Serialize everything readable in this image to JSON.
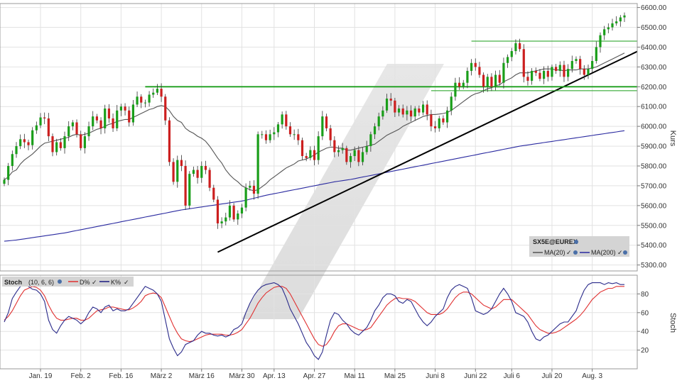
{
  "chart_data": [
    {
      "type": "candlestick",
      "ylabel": "Kurs",
      "ylim": [
        5270,
        6620
      ],
      "y_ticks": [
        5300,
        5400,
        5500,
        5600,
        5700,
        5800,
        5900,
        6000,
        6100,
        6200,
        6300,
        6400,
        6500,
        6600
      ],
      "y_tick_labels": [
        "5300.00",
        "5400.00",
        "5500.00",
        "5600.00",
        "5700.00",
        "5800.00",
        "5900.00",
        "6000.00",
        "6100.00",
        "6200.00",
        "6300.00",
        "6400.00",
        "6500.00",
        "6600.00"
      ],
      "x_tick_labels": [
        "Jan. 19",
        "Feb. 2",
        "Feb. 16",
        "März 2",
        "März 16",
        "März 30",
        "Apr. 13",
        "Apr. 27",
        "Mai 11",
        "Mai 25",
        "Juni 8",
        "Juni 22",
        "Juli 6",
        "Juli 20",
        "Aug. 3"
      ],
      "x_tick_bar_index": [
        9,
        19,
        29,
        39,
        49,
        59,
        67,
        77,
        87,
        97,
        107,
        117,
        126,
        136,
        146
      ],
      "bullish_color": "#1a9e1a",
      "bearish_color": "#cc1f1f",
      "closes": [
        5730,
        5800,
        5860,
        5900,
        5935,
        5920,
        5905,
        5980,
        6005,
        6045,
        6040,
        5950,
        5870,
        5920,
        5890,
        5950,
        6000,
        6020,
        5960,
        5890,
        5950,
        6000,
        6050,
        6030,
        5990,
        6090,
        6040,
        5990,
        6080,
        6100,
        6080,
        6020,
        6110,
        6150,
        6120,
        6120,
        6160,
        6170,
        6190,
        6150,
        6030,
        5820,
        5720,
        5830,
        5800,
        5600,
        5760,
        5780,
        5740,
        5800,
        5780,
        5690,
        5630,
        5510,
        5520,
        5540,
        5600,
        5530,
        5560,
        5590,
        5690,
        5700,
        5660,
        5960,
        5960,
        5930,
        5960,
        5970,
        6010,
        6060,
        6000,
        5960,
        5960,
        5930,
        5850,
        5840,
        5880,
        5830,
        5950,
        6050,
        5990,
        5930,
        5870,
        5880,
        5890,
        5820,
        5850,
        5880,
        5820,
        5870,
        5900,
        5960,
        6000,
        6050,
        6080,
        6140,
        6130,
        6070,
        6090,
        6060,
        6080,
        6050,
        6090,
        6070,
        6110,
        6060,
        6000,
        5990,
        6040,
        6020,
        6080,
        6150,
        6220,
        6200,
        6220,
        6280,
        6320,
        6300,
        6260,
        6200,
        6250,
        6200,
        6260,
        6220,
        6320,
        6350,
        6380,
        6420,
        6390,
        6250,
        6230,
        6280,
        6270,
        6240,
        6280,
        6250,
        6300,
        6280,
        6310,
        6250,
        6290,
        6330,
        6340,
        6290,
        6260,
        6290,
        6330,
        6400,
        6460,
        6490,
        6500,
        6520,
        6530,
        6550,
        6560
      ],
      "ma20": [
        5730,
        5745,
        5770,
        5780,
        5810,
        5830,
        5845,
        5860,
        5880,
        5900,
        5915,
        5920,
        5925,
        5930,
        5935,
        5940,
        5945,
        5955,
        5960,
        5955,
        5960,
        5965,
        5975,
        5985,
        5990,
        6000,
        6010,
        6015,
        6025,
        6030,
        6035,
        6035,
        6045,
        6055,
        6065,
        6075,
        6085,
        6090,
        6100,
        6105,
        6100,
        6080,
        6050,
        6030,
        6020,
        5990,
        5975,
        5965,
        5950,
        5940,
        5925,
        5900,
        5870,
        5840,
        5815,
        5780,
        5755,
        5735,
        5720,
        5700,
        5690,
        5680,
        5675,
        5680,
        5695,
        5710,
        5730,
        5745,
        5760,
        5775,
        5790,
        5800,
        5810,
        5825,
        5830,
        5835,
        5845,
        5855,
        5870,
        5880,
        5890,
        5895,
        5895,
        5890,
        5890,
        5880,
        5880,
        5885,
        5890,
        5895,
        5900,
        5905,
        5910,
        5925,
        5940,
        5955,
        5965,
        5975,
        5985,
        6000,
        6010,
        6020,
        6030,
        6040,
        6050,
        6055,
        6060,
        6060,
        6062,
        6065,
        6070,
        6080,
        6095,
        6110,
        6125,
        6140,
        6155,
        6165,
        6170,
        6180,
        6190,
        6195,
        6205,
        6210,
        6225,
        6235,
        6245,
        6260,
        6270,
        6270,
        6270,
        6275,
        6280,
        6285,
        6290,
        6290,
        6290,
        6285,
        6285,
        6280,
        6285,
        6285,
        6285,
        6290,
        6290,
        6290,
        6295,
        6300,
        6310,
        6320,
        6330,
        6340,
        6350,
        6360,
        6370
      ],
      "ma200": [
        5420,
        5422,
        5424,
        5426,
        5429,
        5432,
        5435,
        5438,
        5441,
        5444,
        5447,
        5450,
        5453,
        5456,
        5459,
        5462,
        5466,
        5470,
        5474,
        5478,
        5482,
        5486,
        5490,
        5494,
        5498,
        5502,
        5506,
        5510,
        5514,
        5518,
        5522,
        5526,
        5530,
        5534,
        5538,
        5542,
        5546,
        5550,
        5554,
        5558,
        5562,
        5566,
        5570,
        5574,
        5578,
        5581,
        5584,
        5587,
        5590,
        5593,
        5596,
        5599,
        5602,
        5605,
        5608,
        5611,
        5614,
        5617,
        5620,
        5623,
        5627,
        5632,
        5637,
        5642,
        5647,
        5652,
        5656,
        5660,
        5664,
        5668,
        5672,
        5676,
        5680,
        5684,
        5688,
        5692,
        5696,
        5700,
        5704,
        5708,
        5712,
        5716,
        5720,
        5723,
        5726,
        5729,
        5732,
        5736,
        5740,
        5744,
        5748,
        5752,
        5756,
        5760,
        5764,
        5768,
        5772,
        5776,
        5780,
        5784,
        5788,
        5792,
        5796,
        5800,
        5804,
        5808,
        5812,
        5816,
        5820,
        5824,
        5828,
        5832,
        5836,
        5840,
        5844,
        5848,
        5852,
        5856,
        5860,
        5864,
        5868,
        5872,
        5876,
        5880,
        5884,
        5888,
        5892,
        5896,
        5900,
        5903,
        5906,
        5909,
        5912,
        5915,
        5918,
        5921,
        5924,
        5927,
        5930,
        5933,
        5936,
        5939,
        5942,
        5945,
        5948,
        5951,
        5954,
        5957,
        5960,
        5963,
        5966,
        5969,
        5972,
        5975,
        5978
      ],
      "lines": [
        {
          "kind": "trendline",
          "color": "#000000",
          "from": {
            "bar": 53,
            "value": 5365
          },
          "to": {
            "bar": 154,
            "value": 6335
          }
        },
        {
          "kind": "resistance",
          "color": "#1a9e1a",
          "from": {
            "bar": 35,
            "value": 6200
          },
          "to": {
            "bar": 154,
            "value": 6200
          }
        },
        {
          "kind": "support",
          "color": "#1a9e1a",
          "from": {
            "bar": 106,
            "value": 6180
          },
          "to": {
            "bar": 154,
            "value": 6180
          }
        },
        {
          "kind": "resistance",
          "color": "#1a9e1a",
          "from": {
            "bar": 116,
            "value": 6430
          },
          "to": {
            "bar": 154,
            "value": 6430
          }
        }
      ],
      "legend": {
        "symbol": "SX5E@EUREX",
        "items": [
          {
            "label": "MA(20)",
            "color": "#555555"
          },
          {
            "label": "MA(200)",
            "color": "#2a2aa0"
          }
        ]
      }
    },
    {
      "type": "line",
      "ylabel": "Stoch",
      "ylim": [
        0,
        100
      ],
      "y_ticks": [
        20,
        40,
        60,
        80
      ],
      "y_tick_labels": [
        "20",
        "40",
        "60",
        "80"
      ],
      "legend": {
        "title": "Stoch",
        "params": "(10, 6, 6)",
        "items": [
          {
            "label": "D%",
            "color": "#e03030"
          },
          {
            "label": "K%",
            "color": "#1a1a80"
          }
        ]
      },
      "series": [
        {
          "name": "K%",
          "color": "#2a2a8a",
          "values": [
            50,
            60,
            75,
            82,
            88,
            90,
            88,
            85,
            84,
            80,
            72,
            52,
            42,
            38,
            46,
            52,
            56,
            54,
            52,
            48,
            52,
            60,
            66,
            64,
            60,
            66,
            68,
            62,
            64,
            62,
            62,
            64,
            70,
            76,
            82,
            88,
            86,
            84,
            80,
            72,
            52,
            32,
            22,
            14,
            18,
            26,
            28,
            30,
            36,
            40,
            38,
            38,
            36,
            35,
            36,
            34,
            36,
            42,
            44,
            48,
            60,
            70,
            78,
            84,
            88,
            90,
            91,
            92,
            90,
            86,
            76,
            64,
            56,
            48,
            38,
            28,
            22,
            14,
            10,
            18,
            36,
            52,
            60,
            58,
            52,
            48,
            42,
            38,
            36,
            40,
            44,
            52,
            62,
            68,
            76,
            80,
            80,
            78,
            72,
            70,
            74,
            72,
            64,
            56,
            50,
            46,
            50,
            56,
            60,
            64,
            76,
            84,
            88,
            90,
            88,
            86,
            76,
            62,
            60,
            58,
            60,
            64,
            72,
            80,
            86,
            80,
            72,
            60,
            58,
            56,
            50,
            40,
            32,
            30,
            34,
            36,
            40,
            44,
            48,
            50,
            50,
            56,
            62,
            74,
            84,
            90,
            92,
            92,
            92,
            90,
            92,
            91,
            92,
            90,
            90
          ]
        },
        {
          "name": "D%",
          "color": "#e03030",
          "values": [
            52,
            56,
            62,
            70,
            78,
            84,
            86,
            88,
            87,
            84,
            78,
            68,
            60,
            54,
            52,
            52,
            53,
            54,
            54,
            52,
            52,
            54,
            58,
            62,
            63,
            64,
            66,
            66,
            65,
            64,
            63,
            63,
            65,
            68,
            72,
            78,
            80,
            81,
            80,
            76,
            66,
            56,
            46,
            38,
            32,
            30,
            29,
            30,
            32,
            34,
            36,
            37,
            37,
            37,
            37,
            36,
            36,
            37,
            39,
            42,
            48,
            54,
            62,
            70,
            76,
            81,
            84,
            87,
            88,
            88,
            86,
            80,
            72,
            64,
            56,
            48,
            40,
            32,
            26,
            24,
            26,
            32,
            40,
            46,
            48,
            48,
            46,
            44,
            42,
            41,
            42,
            44,
            50,
            56,
            62,
            68,
            72,
            75,
            76,
            75,
            75,
            74,
            72,
            68,
            64,
            60,
            58,
            58,
            58,
            60,
            64,
            70,
            76,
            80,
            82,
            82,
            80,
            76,
            72,
            68,
            66,
            64,
            66,
            70,
            74,
            74,
            74,
            70,
            66,
            62,
            58,
            52,
            46,
            42,
            40,
            38,
            38,
            39,
            41,
            44,
            47,
            50,
            53,
            57,
            62,
            68,
            74,
            78,
            82,
            84,
            86,
            86,
            88,
            88,
            88
          ]
        }
      ]
    }
  ]
}
